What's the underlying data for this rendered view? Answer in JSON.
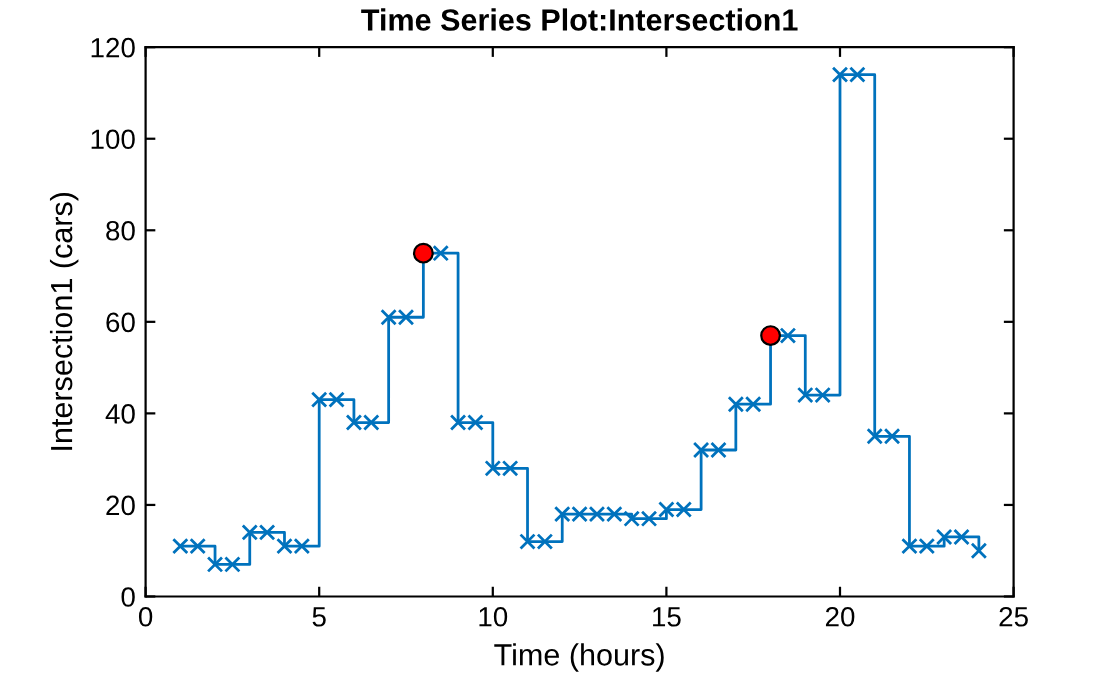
{
  "chart_data": {
    "type": "step",
    "title": "Time Series Plot:Intersection1",
    "xlabel": "Time (hours)",
    "ylabel": "Intersection1 (cars)",
    "xlim": [
      0,
      25
    ],
    "xticks": [
      0,
      5,
      10,
      15,
      20,
      25
    ],
    "ylim": [
      0,
      120
    ],
    "yticks": [
      0,
      20,
      40,
      60,
      80,
      100,
      120
    ],
    "grid": false,
    "legend": false,
    "marker": "cross",
    "line_style": "solid",
    "series": [
      {
        "color": "#0072bd",
        "x": [
          1,
          1.5,
          2,
          2.5,
          3,
          3.5,
          4,
          4.5,
          5,
          5.5,
          6,
          6.5,
          7,
          7.5,
          8,
          8.5,
          9,
          9.5,
          10,
          10.5,
          11,
          11.5,
          12,
          12.5,
          13,
          13.5,
          14,
          14.5,
          15,
          15.5,
          16,
          16.5,
          17,
          17.5,
          18,
          18.5,
          19,
          19.5,
          20,
          20.5,
          21,
          21.5,
          22,
          22.5,
          23,
          23.5,
          24
        ],
        "values": [
          11,
          11,
          7,
          7,
          14,
          14,
          11,
          11,
          43,
          43,
          38,
          38,
          61,
          61,
          75,
          75,
          38,
          38,
          28,
          28,
          12,
          12,
          18,
          18,
          18,
          18,
          17,
          17,
          19,
          19,
          32,
          32,
          42,
          42,
          57,
          57,
          44,
          44,
          114,
          114,
          35,
          35,
          11,
          11,
          13,
          13,
          10
        ]
      },
      {
        "type": "scatter",
        "color": "#ff0000",
        "marker": "circle",
        "x": [
          8,
          18
        ],
        "values": [
          75,
          57
        ]
      }
    ]
  }
}
